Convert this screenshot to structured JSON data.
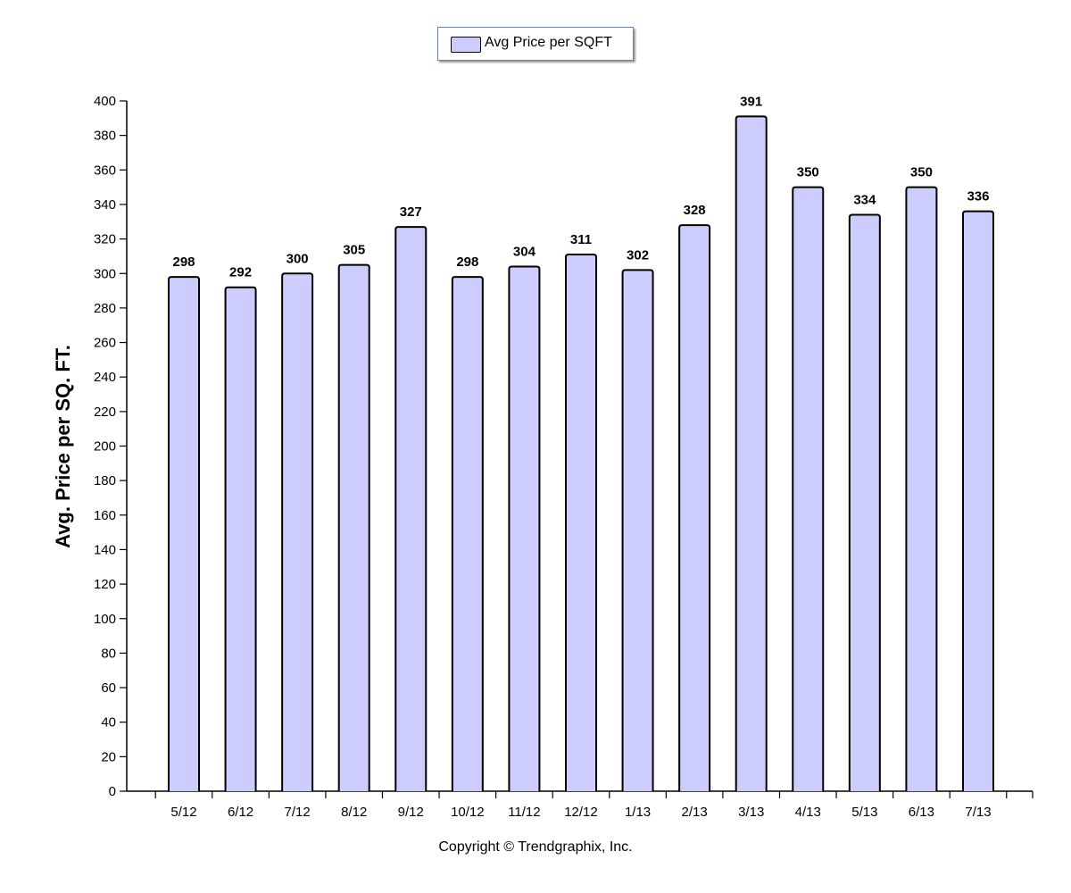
{
  "legend": {
    "label": "Avg Price per SQFT",
    "swatch_color": "#ccccff"
  },
  "copyright": "Copyright © Trendgraphix, Inc.",
  "chart_data": {
    "type": "bar",
    "categories": [
      "5/12",
      "6/12",
      "7/12",
      "8/12",
      "9/12",
      "10/12",
      "11/12",
      "12/12",
      "1/13",
      "2/13",
      "3/13",
      "4/13",
      "5/13",
      "6/13",
      "7/13"
    ],
    "series": [
      {
        "name": "Avg Price per SQFT",
        "values": [
          298,
          292,
          300,
          305,
          327,
          298,
          304,
          311,
          302,
          328,
          391,
          350,
          334,
          350,
          336
        ]
      }
    ],
    "ylabel": "Avg. Price per SQ. FT.",
    "xlabel": "",
    "ylim": [
      0,
      400
    ],
    "ytick_step": 20,
    "data_labels": true,
    "grid": false,
    "legend_position": "top-center",
    "bar_color": "#ccccff",
    "bar_border_color": "#000000"
  }
}
